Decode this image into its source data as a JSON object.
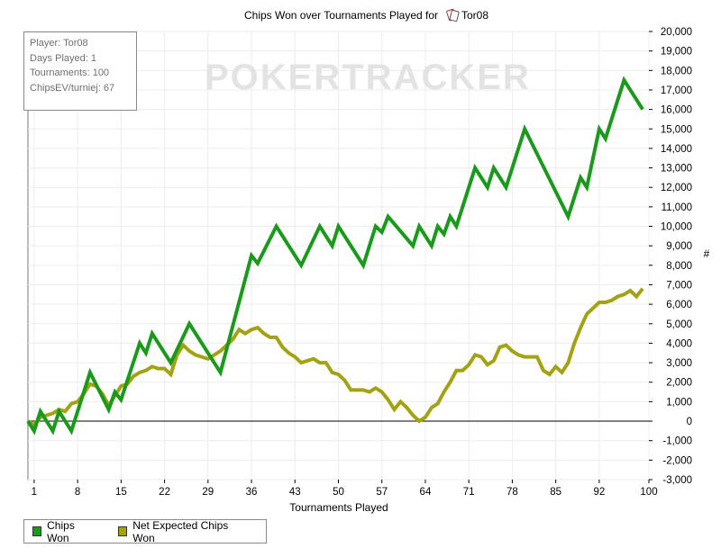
{
  "chart_data": {
    "type": "line",
    "title": "Chips Won over Tournaments Played for",
    "player_name": "Tor08",
    "watermark": "POKERTRACKER",
    "xlabel": "Tournaments Played",
    "ylabel": "#",
    "x_ticks": [
      1,
      8,
      15,
      22,
      29,
      36,
      43,
      50,
      57,
      64,
      71,
      78,
      85,
      92,
      100
    ],
    "y_ticks": [
      -3000,
      -2000,
      -1000,
      0,
      1000,
      2000,
      3000,
      4000,
      5000,
      6000,
      7000,
      8000,
      9000,
      10000,
      11000,
      12000,
      13000,
      14000,
      15000,
      16000,
      17000,
      18000,
      19000,
      20000
    ],
    "y_tick_labels": [
      "-3,000",
      "-2,000",
      "-1,000",
      "0",
      "1,000",
      "2,000",
      "3,000",
      "4,000",
      "5,000",
      "6,000",
      "7,000",
      "8,000",
      "9,000",
      "10,000",
      "11,000",
      "12,000",
      "13,000",
      "14,000",
      "15,000",
      "16,000",
      "17,000",
      "18,000",
      "19,000",
      "20,000"
    ],
    "xlim": [
      0,
      100
    ],
    "ylim": [
      -3000,
      20000
    ],
    "grid": true,
    "legend_position": "bottom-left",
    "series": [
      {
        "name": "Chips Won",
        "color": "#1a9a1a",
        "points": [
          [
            0,
            0
          ],
          [
            1,
            -500
          ],
          [
            2,
            500
          ],
          [
            3,
            0
          ],
          [
            4,
            -500
          ],
          [
            5,
            500
          ],
          [
            7,
            -500
          ],
          [
            10,
            2500
          ],
          [
            13,
            600
          ],
          [
            14,
            1500
          ],
          [
            15,
            1100
          ],
          [
            18,
            4000
          ],
          [
            19,
            3500
          ],
          [
            20,
            4500
          ],
          [
            23,
            3000
          ],
          [
            26,
            5000
          ],
          [
            31,
            2500
          ],
          [
            36,
            8500
          ],
          [
            37,
            8100
          ],
          [
            40,
            10000
          ],
          [
            44,
            8000
          ],
          [
            47,
            10000
          ],
          [
            49,
            9000
          ],
          [
            50,
            10000
          ],
          [
            54,
            8000
          ],
          [
            56,
            10000
          ],
          [
            57,
            9700
          ],
          [
            58,
            10500
          ],
          [
            62,
            9000
          ],
          [
            63,
            10000
          ],
          [
            65,
            9000
          ],
          [
            66,
            10000
          ],
          [
            67,
            9600
          ],
          [
            68,
            10500
          ],
          [
            69,
            10000
          ],
          [
            72,
            13000
          ],
          [
            74,
            12000
          ],
          [
            75,
            13000
          ],
          [
            77,
            12000
          ],
          [
            80,
            15000
          ],
          [
            87,
            10500
          ],
          [
            89,
            12500
          ],
          [
            90,
            12000
          ],
          [
            92,
            15000
          ],
          [
            93,
            14500
          ],
          [
            96,
            17500
          ],
          [
            99,
            16000
          ]
        ]
      },
      {
        "name": "Net Expected Chips Won",
        "color": "#a3a312",
        "points": [
          [
            0,
            0
          ],
          [
            1,
            -200
          ],
          [
            2,
            200
          ],
          [
            3,
            300
          ],
          [
            4,
            400
          ],
          [
            5,
            600
          ],
          [
            6,
            500
          ],
          [
            7,
            900
          ],
          [
            8,
            1000
          ],
          [
            9,
            1400
          ],
          [
            10,
            1900
          ],
          [
            11,
            1800
          ],
          [
            12,
            1400
          ],
          [
            13,
            800
          ],
          [
            14,
            1300
          ],
          [
            15,
            1800
          ],
          [
            16,
            1900
          ],
          [
            17,
            2300
          ],
          [
            18,
            2500
          ],
          [
            19,
            2600
          ],
          [
            20,
            2800
          ],
          [
            21,
            2700
          ],
          [
            22,
            2700
          ],
          [
            23,
            2400
          ],
          [
            24,
            3400
          ],
          [
            25,
            3900
          ],
          [
            26,
            3600
          ],
          [
            27,
            3400
          ],
          [
            28,
            3300
          ],
          [
            29,
            3200
          ],
          [
            30,
            3400
          ],
          [
            31,
            3600
          ],
          [
            32,
            3900
          ],
          [
            33,
            4200
          ],
          [
            34,
            4700
          ],
          [
            35,
            4500
          ],
          [
            36,
            4700
          ],
          [
            37,
            4800
          ],
          [
            38,
            4500
          ],
          [
            39,
            4300
          ],
          [
            40,
            4300
          ],
          [
            41,
            3800
          ],
          [
            42,
            3500
          ],
          [
            43,
            3300
          ],
          [
            44,
            3000
          ],
          [
            45,
            3100
          ],
          [
            46,
            3200
          ],
          [
            47,
            3000
          ],
          [
            48,
            3000
          ],
          [
            49,
            2500
          ],
          [
            50,
            2400
          ],
          [
            51,
            2100
          ],
          [
            52,
            1600
          ],
          [
            53,
            1600
          ],
          [
            54,
            1600
          ],
          [
            55,
            1500
          ],
          [
            56,
            1700
          ],
          [
            57,
            1500
          ],
          [
            58,
            1100
          ],
          [
            59,
            600
          ],
          [
            60,
            1000
          ],
          [
            61,
            700
          ],
          [
            62,
            300
          ],
          [
            63,
            0
          ],
          [
            64,
            200
          ],
          [
            65,
            700
          ],
          [
            66,
            900
          ],
          [
            67,
            1500
          ],
          [
            68,
            2000
          ],
          [
            69,
            2600
          ],
          [
            70,
            2600
          ],
          [
            71,
            2900
          ],
          [
            72,
            3400
          ],
          [
            73,
            3300
          ],
          [
            74,
            2900
          ],
          [
            75,
            3100
          ],
          [
            76,
            3800
          ],
          [
            77,
            3900
          ],
          [
            78,
            3600
          ],
          [
            79,
            3400
          ],
          [
            80,
            3300
          ],
          [
            81,
            3300
          ],
          [
            82,
            3300
          ],
          [
            83,
            2600
          ],
          [
            84,
            2400
          ],
          [
            85,
            2800
          ],
          [
            86,
            2500
          ],
          [
            87,
            3000
          ],
          [
            88,
            4000
          ],
          [
            89,
            4800
          ],
          [
            90,
            5500
          ],
          [
            91,
            5800
          ],
          [
            92,
            6100
          ],
          [
            93,
            6100
          ],
          [
            94,
            6200
          ],
          [
            95,
            6400
          ],
          [
            96,
            6500
          ],
          [
            97,
            6700
          ],
          [
            98,
            6400
          ],
          [
            99,
            6800
          ]
        ]
      }
    ],
    "info": {
      "player": "Player: Tor08",
      "days": "Days Played: 1",
      "tournaments": "Tournaments: 100",
      "chipsev": "ChipsEV/turniej: 67"
    },
    "legend": [
      "Chips Won",
      "Net Expected Chips Won"
    ]
  }
}
